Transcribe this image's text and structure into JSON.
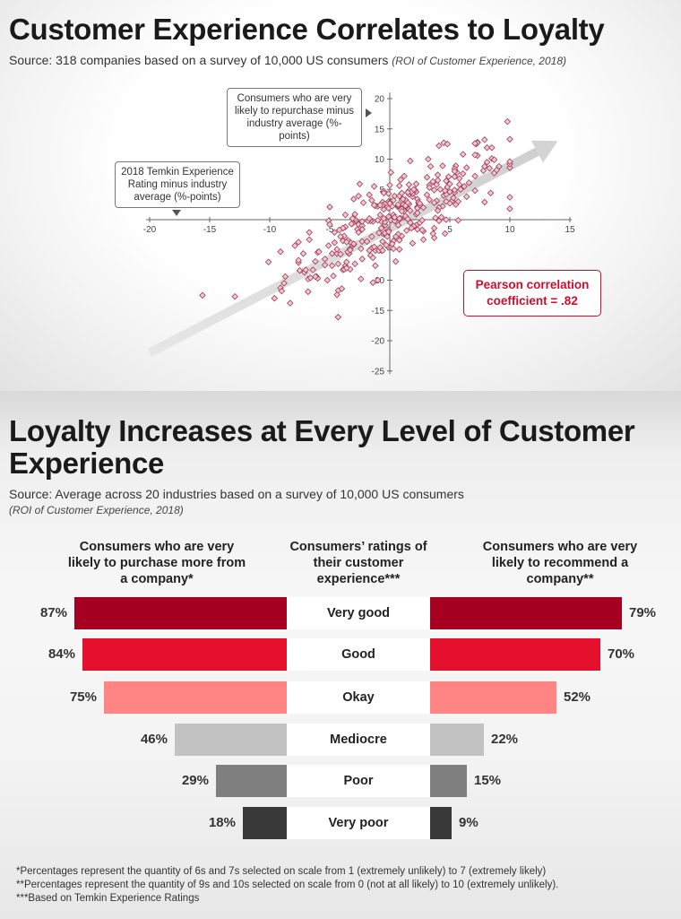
{
  "top": {
    "title": "Customer Experience Correlates to Loyalty",
    "source": "Source: 318 companies based on a survey of 10,000 US consumers",
    "source_ref": "(ROI of Customer Experience, 2018)",
    "y_callout": "Consumers who are very likely to repurchase minus industry average (%-points)",
    "x_callout": "2018 Temkin Experience Rating minus industry average (%-points)",
    "pearson_line1": "Pearson correlation",
    "pearson_line2": "coefficient = .82"
  },
  "chart_data": [
    {
      "type": "scatter",
      "title": "Customer Experience Correlates to Loyalty",
      "xlabel": "2018 Temkin Experience Rating minus industry average (%-points)",
      "ylabel": "Consumers who are very likely to repurchase minus industry average (%-points)",
      "xlim": [
        -20,
        15
      ],
      "ylim": [
        -25,
        20
      ],
      "xticks": [
        -20,
        -15,
        -10,
        -5,
        5,
        10,
        15
      ],
      "yticks": [
        20,
        15,
        10,
        5,
        -5,
        -10,
        -15,
        -20,
        -25
      ],
      "series": [
        {
          "name": "Companies",
          "n": 318,
          "color": "#e8a0b4",
          "x": [],
          "y": []
        }
      ],
      "trend": {
        "from": [
          -20,
          -22
        ],
        "to": [
          14,
          13
        ]
      },
      "annotation": "Pearson correlation coefficient = .82"
    },
    {
      "type": "bar",
      "title": "Loyalty Increases at Every Level of Customer Experience",
      "categories": [
        "Very good",
        "Good",
        "Okay",
        "Mediocre",
        "Poor",
        "Very poor"
      ],
      "series": [
        {
          "name": "Consumers who are very likely to purchase more from a company*",
          "values": [
            87,
            84,
            75,
            46,
            29,
            18
          ]
        },
        {
          "name": "Consumers who are very likely to recommend a company**",
          "values": [
            79,
            70,
            52,
            22,
            15,
            9
          ]
        }
      ],
      "colors": [
        "#a50021",
        "#e5102e",
        "#ff8585",
        "#c2c2c2",
        "#7f7f7f",
        "#383838"
      ]
    }
  ],
  "bottom": {
    "title": "Loyalty Increases at Every Level of Customer Experience",
    "source": "Source: Average across 20 industries based on a survey of 10,000 US consumers",
    "source_ref": "(ROI of Customer Experience, 2018)",
    "left_header": "Consumers who are very likely to purchase more from a company*",
    "mid_header": "Consumers’ ratings of their customer experience***",
    "right_header": "Consumers who are very likely to recommend a company**",
    "rows": [
      {
        "label": "Very good",
        "left_text": "87%",
        "right_text": "79%"
      },
      {
        "label": "Good",
        "left_text": "84%",
        "right_text": "70%"
      },
      {
        "label": "Okay",
        "left_text": "75%",
        "right_text": "52%"
      },
      {
        "label": "Mediocre",
        "left_text": "46%",
        "right_text": "22%"
      },
      {
        "label": "Poor",
        "left_text": "29%",
        "right_text": "15%"
      },
      {
        "label": "Very poor",
        "left_text": "18%",
        "right_text": "9%"
      }
    ],
    "footnotes": [
      "*Percentages represent the quantity of 6s and 7s selected on scale from 1 (extremely unlikely) to 7 (extremely likely)",
      "**Percentages represent the quantity of 9s and 10s selected on scale from 0 (not at all likely) to 10 (extremely unlikely).",
      "***Based on Temkin Experience Ratings"
    ]
  }
}
